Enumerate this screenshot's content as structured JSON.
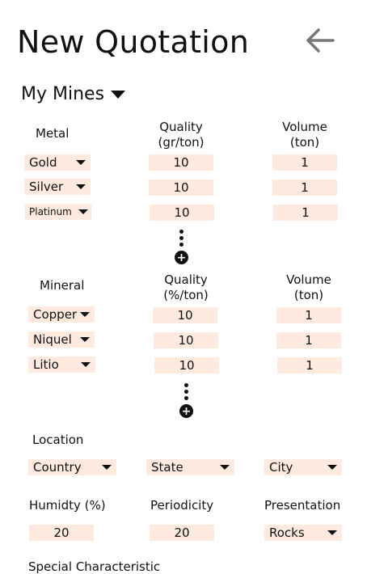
{
  "page": {
    "title": "New Quotation"
  },
  "mines": {
    "label": "My Mines"
  },
  "metals": {
    "headers": {
      "name": "Metal",
      "quality": "Quality\n(gr/ton)",
      "volume": "Volume\n(ton)"
    },
    "rows": [
      {
        "name": "Gold",
        "quality": "10",
        "volume": "1"
      },
      {
        "name": "Silver",
        "quality": "10",
        "volume": "1"
      },
      {
        "name": "Platinum",
        "quality": "10",
        "volume": "1"
      }
    ]
  },
  "minerals": {
    "headers": {
      "name": "Mineral",
      "quality": "Quality\n(%/ton)",
      "volume": "Volume\n(ton)"
    },
    "rows": [
      {
        "name": "Copper",
        "quality": "10",
        "volume": "1"
      },
      {
        "name": "Niquel",
        "quality": "10",
        "volume": "1"
      },
      {
        "name": "Litio",
        "quality": "10",
        "volume": "1"
      }
    ]
  },
  "location": {
    "label": "Location",
    "country": "Country",
    "state": "State",
    "city": "City"
  },
  "details": {
    "humidity_label": "Humidty (%)",
    "humidity_value": "20",
    "periodicity_label": "Periodicity",
    "periodicity_value": "20",
    "presentation_label": "Presentation",
    "presentation_value": "Rocks"
  },
  "special": {
    "label": "Special Characteristic"
  },
  "icons": {
    "back": "arrow-left-icon",
    "add": "plus-circle-icon",
    "more": "vertical-dots-icon",
    "dropdown": "caret-down-icon"
  },
  "colors": {
    "field_bg": "#ffeadf",
    "back_arrow": "#777777",
    "text": "#111111"
  }
}
